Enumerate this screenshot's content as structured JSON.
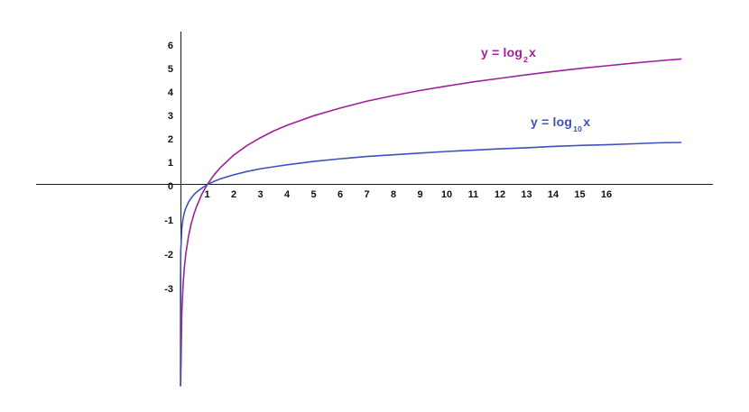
{
  "figure": {
    "background": "#ffffff",
    "axis_color": "#1a1a1a",
    "tick_label_color": "#111111"
  },
  "chart_data": {
    "type": "line",
    "title": "",
    "xlabel": "",
    "ylabel": "",
    "grid": false,
    "legend_position": "inline-curve-labels",
    "xlim": [
      -5.4,
      20
    ],
    "ylim": [
      -8.5,
      6.5
    ],
    "x_ticks": [
      1,
      2,
      3,
      4,
      5,
      6,
      7,
      8,
      9,
      10,
      11,
      12,
      13,
      14,
      15,
      16
    ],
    "y_ticks": [
      6,
      5,
      4,
      3,
      2,
      1,
      0,
      -1,
      -2,
      -3
    ],
    "series": [
      {
        "name": "y = log2 x",
        "label": {
          "prefix": "y = log",
          "sub": "2",
          "suffix": "x"
        },
        "color": "#a02098",
        "points": [
          [
            0.0001,
            -13.29
          ],
          [
            0.001,
            -9.97
          ],
          [
            0.01,
            -6.64
          ],
          [
            0.05,
            -4.32
          ],
          [
            0.1,
            -3.32
          ],
          [
            0.15,
            -2.74
          ],
          [
            0.2,
            -2.32
          ],
          [
            0.3,
            -1.74
          ],
          [
            0.4,
            -1.32
          ],
          [
            0.5,
            -1.0
          ],
          [
            0.6,
            -0.74
          ],
          [
            0.8,
            -0.32
          ],
          [
            1,
            0
          ],
          [
            1.25,
            0.32
          ],
          [
            1.5,
            0.58
          ],
          [
            2,
            1.0
          ],
          [
            2.5,
            1.32
          ],
          [
            3,
            1.58
          ],
          [
            3.5,
            1.81
          ],
          [
            4,
            2.0
          ],
          [
            5,
            2.32
          ],
          [
            6,
            2.58
          ],
          [
            7,
            2.81
          ],
          [
            8,
            3.0
          ],
          [
            9,
            3.17
          ],
          [
            10,
            3.32
          ],
          [
            11,
            3.46
          ],
          [
            12,
            3.58
          ],
          [
            13,
            3.7
          ],
          [
            14,
            3.81
          ],
          [
            15,
            3.91
          ],
          [
            16,
            4.0
          ],
          [
            17,
            4.09
          ],
          [
            18,
            4.17
          ],
          [
            18.8,
            4.23
          ]
        ]
      },
      {
        "name": "y = log10 x",
        "label": {
          "prefix": "y = log",
          "sub": "10",
          "suffix": "x"
        },
        "color": "#3f51c1",
        "points": [
          [
            1e-06,
            -6.0
          ],
          [
            0.001,
            -3.0
          ],
          [
            0.01,
            -2.0
          ],
          [
            0.05,
            -1.3
          ],
          [
            0.1,
            -1.0
          ],
          [
            0.15,
            -0.82
          ],
          [
            0.2,
            -0.7
          ],
          [
            0.3,
            -0.52
          ],
          [
            0.4,
            -0.4
          ],
          [
            0.5,
            -0.3
          ],
          [
            0.6,
            -0.22
          ],
          [
            0.8,
            -0.1
          ],
          [
            1,
            0
          ],
          [
            1.25,
            0.1
          ],
          [
            1.5,
            0.18
          ],
          [
            2,
            0.3
          ],
          [
            2.5,
            0.4
          ],
          [
            3,
            0.48
          ],
          [
            3.5,
            0.54
          ],
          [
            4,
            0.6
          ],
          [
            5,
            0.7
          ],
          [
            6,
            0.78
          ],
          [
            7,
            0.85
          ],
          [
            8,
            0.9
          ],
          [
            9,
            0.95
          ],
          [
            10,
            1.0
          ],
          [
            11,
            1.04
          ],
          [
            12,
            1.08
          ],
          [
            13,
            1.11
          ],
          [
            14,
            1.15
          ],
          [
            15,
            1.18
          ],
          [
            16,
            1.2
          ],
          [
            17,
            1.23
          ],
          [
            18,
            1.26
          ],
          [
            18.8,
            1.27
          ]
        ]
      }
    ]
  }
}
